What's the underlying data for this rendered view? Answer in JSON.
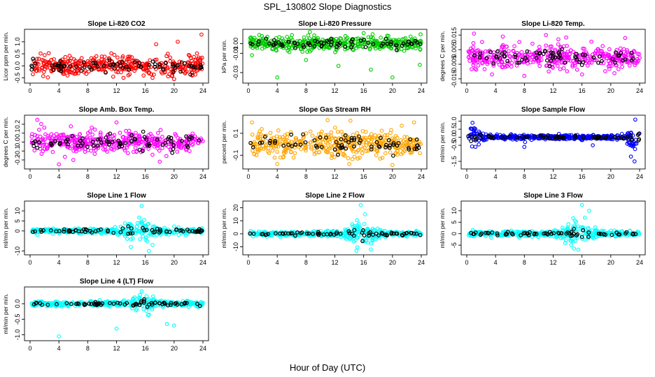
{
  "title": "SPL_130802  Slope Diagnostics",
  "xlabel": "Hour of Day (UTC)",
  "chart_data": [
    {
      "type": "scatter",
      "title": "Slope Li-820 CO2",
      "ylabel": "Licor ppm per min.",
      "color": "#ff0000",
      "xlim": [
        0,
        24
      ],
      "ylim": [
        -0.6,
        1.4
      ],
      "xticks": [
        "0",
        "4",
        "8",
        "12",
        "16",
        "20",
        "24"
      ],
      "yticks": [
        {
          "v": -0.5,
          "label": "-0.5"
        },
        {
          "v": 0,
          "label": "0.0"
        },
        {
          "v": 0.5,
          "label": "0.5"
        },
        {
          "v": 1,
          "label": "1.0"
        }
      ],
      "spread": 0.35,
      "bursts": [],
      "outliers": [
        [
          17.5,
          0.9
        ],
        [
          20.5,
          1.0
        ],
        [
          23.8,
          1.3
        ],
        [
          17,
          -0.5
        ],
        [
          20,
          -0.55
        ],
        [
          22.5,
          -0.4
        ],
        [
          5.2,
          -0.4
        ]
      ]
    },
    {
      "type": "scatter",
      "title": "Slope Li-820 Pressure",
      "ylabel": "kPa per min.",
      "color": "#00cc00",
      "xlim": [
        0,
        24
      ],
      "ylim": [
        -0.038,
        0.012
      ],
      "xticks": [
        "0",
        "4",
        "8",
        "12",
        "16",
        "20",
        "24"
      ],
      "yticks": [
        {
          "v": -0.03,
          "label": "-0.03"
        },
        {
          "v": -0.01,
          "label": "-0.01"
        },
        {
          "v": 0,
          "label": "0.00"
        }
      ],
      "spread": 0.006,
      "bursts": [],
      "outliers": [
        [
          1.5,
          0.009
        ],
        [
          4,
          -0.035
        ],
        [
          8,
          -0.017
        ],
        [
          12.5,
          -0.023
        ],
        [
          16,
          0.011
        ],
        [
          17,
          -0.027
        ],
        [
          20,
          -0.035
        ],
        [
          23.8,
          -0.022
        ],
        [
          0.5,
          -0.012
        ]
      ]
    },
    {
      "type": "scatter",
      "title": "Slope Li-820 Temp.",
      "ylabel": "degrees C per min.",
      "color": "#ff00ff",
      "xlim": [
        0,
        24
      ],
      "ylim": [
        -0.016,
        0.017
      ],
      "xticks": [
        "0",
        "4",
        "8",
        "12",
        "16",
        "20",
        "24"
      ],
      "yticks": [
        {
          "v": -0.015,
          "label": "-0.015"
        },
        {
          "v": -0.005,
          "label": "-0.005"
        },
        {
          "v": 0.005,
          "label": "0.005"
        },
        {
          "v": 0.015,
          "label": "0.015"
        }
      ],
      "spread": 0.007,
      "bursts": [],
      "outliers": [
        [
          1,
          0.016
        ],
        [
          3.5,
          -0.012
        ],
        [
          5,
          0.014
        ],
        [
          8,
          -0.013
        ],
        [
          11,
          0.015
        ],
        [
          16,
          -0.012
        ],
        [
          22,
          0.013
        ]
      ]
    },
    {
      "type": "scatter",
      "title": "Slope Amb. Box Temp.",
      "ylabel": "degrees C per min.",
      "color": "#ff00ff",
      "xlim": [
        0,
        24
      ],
      "ylim": [
        -0.27,
        0.27
      ],
      "xticks": [
        "0",
        "4",
        "8",
        "12",
        "16",
        "20",
        "24"
      ],
      "yticks": [
        {
          "v": -0.2,
          "label": "-0.2"
        },
        {
          "v": -0.1,
          "label": "-0.1"
        },
        {
          "v": 0,
          "label": "0.0"
        },
        {
          "v": 0.1,
          "label": "0.1"
        },
        {
          "v": 0.2,
          "label": "0.2"
        }
      ],
      "spread": 0.11,
      "bursts": [],
      "outliers": [
        [
          1,
          0.25
        ],
        [
          4,
          -0.25
        ],
        [
          6,
          -0.2
        ],
        [
          12,
          0.22
        ],
        [
          18,
          -0.22
        ]
      ]
    },
    {
      "type": "scatter",
      "title": "Slope Gas Stream RH",
      "ylabel": "percent per min.",
      "color": "#ffa500",
      "xlim": [
        0,
        24
      ],
      "ylim": [
        -0.2,
        0.24
      ],
      "xticks": [
        "0",
        "4",
        "8",
        "12",
        "16",
        "20",
        "24"
      ],
      "yticks": [
        {
          "v": -0.1,
          "label": "-0.1"
        },
        {
          "v": 0.1,
          "label": "0.1"
        }
      ],
      "spread": 0.1,
      "bursts": [],
      "outliers": [
        [
          0.5,
          0.2
        ],
        [
          4,
          -0.18
        ],
        [
          11,
          0.22
        ],
        [
          14,
          -0.18
        ],
        [
          20,
          -0.19
        ],
        [
          23,
          0.2
        ]
      ]
    },
    {
      "type": "scatter",
      "title": "Slope Sample Flow",
      "ylabel": "ml/min per min.",
      "color": "#0000ff",
      "xlim": [
        0,
        24
      ],
      "ylim": [
        -1.8,
        1.2
      ],
      "xticks": [
        "0",
        "4",
        "8",
        "12",
        "16",
        "20",
        "24"
      ],
      "yticks": [
        {
          "v": -1.5,
          "label": "-1.5"
        },
        {
          "v": -0.5,
          "label": "-0.5"
        },
        {
          "v": 0,
          "label": "0.0"
        },
        {
          "v": 0.5,
          "label": "0.5"
        },
        {
          "v": 1,
          "label": "1.0"
        }
      ],
      "spread": 0.12,
      "bursts": [
        {
          "c": 1.2,
          "w": 1.0,
          "a": 0.5
        },
        {
          "c": 23.2,
          "w": 0.8,
          "a": 0.8
        }
      ],
      "outliers": [
        [
          0.8,
          0.9
        ],
        [
          23.4,
          1.1
        ],
        [
          23.3,
          -1.5
        ],
        [
          22.8,
          -1.2
        ],
        [
          8,
          -0.6
        ],
        [
          8.1,
          -0.3
        ],
        [
          17.5,
          -0.5
        ]
      ]
    },
    {
      "type": "scatter",
      "title": "Slope Line 1 Flow",
      "ylabel": "ml/min per min.",
      "color": "#00ffff",
      "xlim": [
        0,
        24
      ],
      "ylim": [
        -10.5,
        13.5
      ],
      "xticks": [
        "0",
        "4",
        "8",
        "12",
        "16",
        "20",
        "24"
      ],
      "yticks": [
        {
          "v": -10,
          "label": "-10"
        },
        {
          "v": 0,
          "label": "0"
        },
        {
          "v": 5,
          "label": "5"
        },
        {
          "v": 10,
          "label": "10"
        }
      ],
      "spread": 1.0,
      "bursts": [
        {
          "c": 15,
          "w": 2.0,
          "a": 4.5
        },
        {
          "c": 20,
          "w": 1.5,
          "a": 1.5
        }
      ],
      "outliers": [
        [
          15.5,
          12.5
        ],
        [
          16.5,
          -10
        ],
        [
          14,
          -8
        ],
        [
          17,
          -7
        ]
      ]
    },
    {
      "type": "scatter",
      "title": "Slope Line 2 Flow",
      "ylabel": "ml/min per min.",
      "color": "#00ffff",
      "xlim": [
        0,
        24
      ],
      "ylim": [
        -14,
        23
      ],
      "xticks": [
        "0",
        "4",
        "8",
        "12",
        "16",
        "20",
        "24"
      ],
      "yticks": [
        {
          "v": -10,
          "label": "-10"
        },
        {
          "v": 0,
          "label": "0"
        },
        {
          "v": 10,
          "label": "10"
        },
        {
          "v": 20,
          "label": "20"
        }
      ],
      "spread": 1.5,
      "bursts": [
        {
          "c": 15.5,
          "w": 2.2,
          "a": 7
        }
      ],
      "outliers": [
        [
          15.6,
          22
        ],
        [
          15,
          -13
        ],
        [
          17,
          -12
        ],
        [
          16.2,
          15
        ]
      ]
    },
    {
      "type": "scatter",
      "title": "Slope Line 3 Flow",
      "ylabel": "ml/min per min.",
      "color": "#00ffff",
      "xlim": [
        0,
        24
      ],
      "ylim": [
        -8,
        13
      ],
      "xticks": [
        "0",
        "4",
        "8",
        "12",
        "16",
        "20",
        "24"
      ],
      "yticks": [
        {
          "v": -5,
          "label": "-5"
        },
        {
          "v": 0,
          "label": "0"
        },
        {
          "v": 5,
          "label": "5"
        },
        {
          "v": 10,
          "label": "10"
        }
      ],
      "spread": 1.0,
      "bursts": [
        {
          "c": 15.5,
          "w": 2.0,
          "a": 4.5
        }
      ],
      "outliers": [
        [
          16,
          12.5
        ],
        [
          15.5,
          -7
        ],
        [
          17,
          10
        ],
        [
          14.5,
          -5
        ]
      ]
    },
    {
      "type": "scatter",
      "title": "Slope Line 4 (LT) Flow",
      "ylabel": "ml/min per min.",
      "color": "#00ffff",
      "xlim": [
        0,
        24
      ],
      "ylim": [
        -1.1,
        0.45
      ],
      "xticks": [
        "0",
        "4",
        "8",
        "12",
        "16",
        "20",
        "24"
      ],
      "yticks": [
        {
          "v": -1,
          "label": "-1.0"
        },
        {
          "v": -0.5,
          "label": "-0.5"
        },
        {
          "v": 0,
          "label": "0.0"
        }
      ],
      "spread": 0.07,
      "bursts": [
        {
          "c": 15.5,
          "w": 1.8,
          "a": 0.2
        }
      ],
      "outliers": [
        [
          4,
          -1.05
        ],
        [
          12,
          -0.8
        ],
        [
          20,
          -0.7
        ],
        [
          15.5,
          0.4
        ],
        [
          19,
          -0.65
        ],
        [
          16.5,
          -0.35
        ]
      ]
    }
  ]
}
